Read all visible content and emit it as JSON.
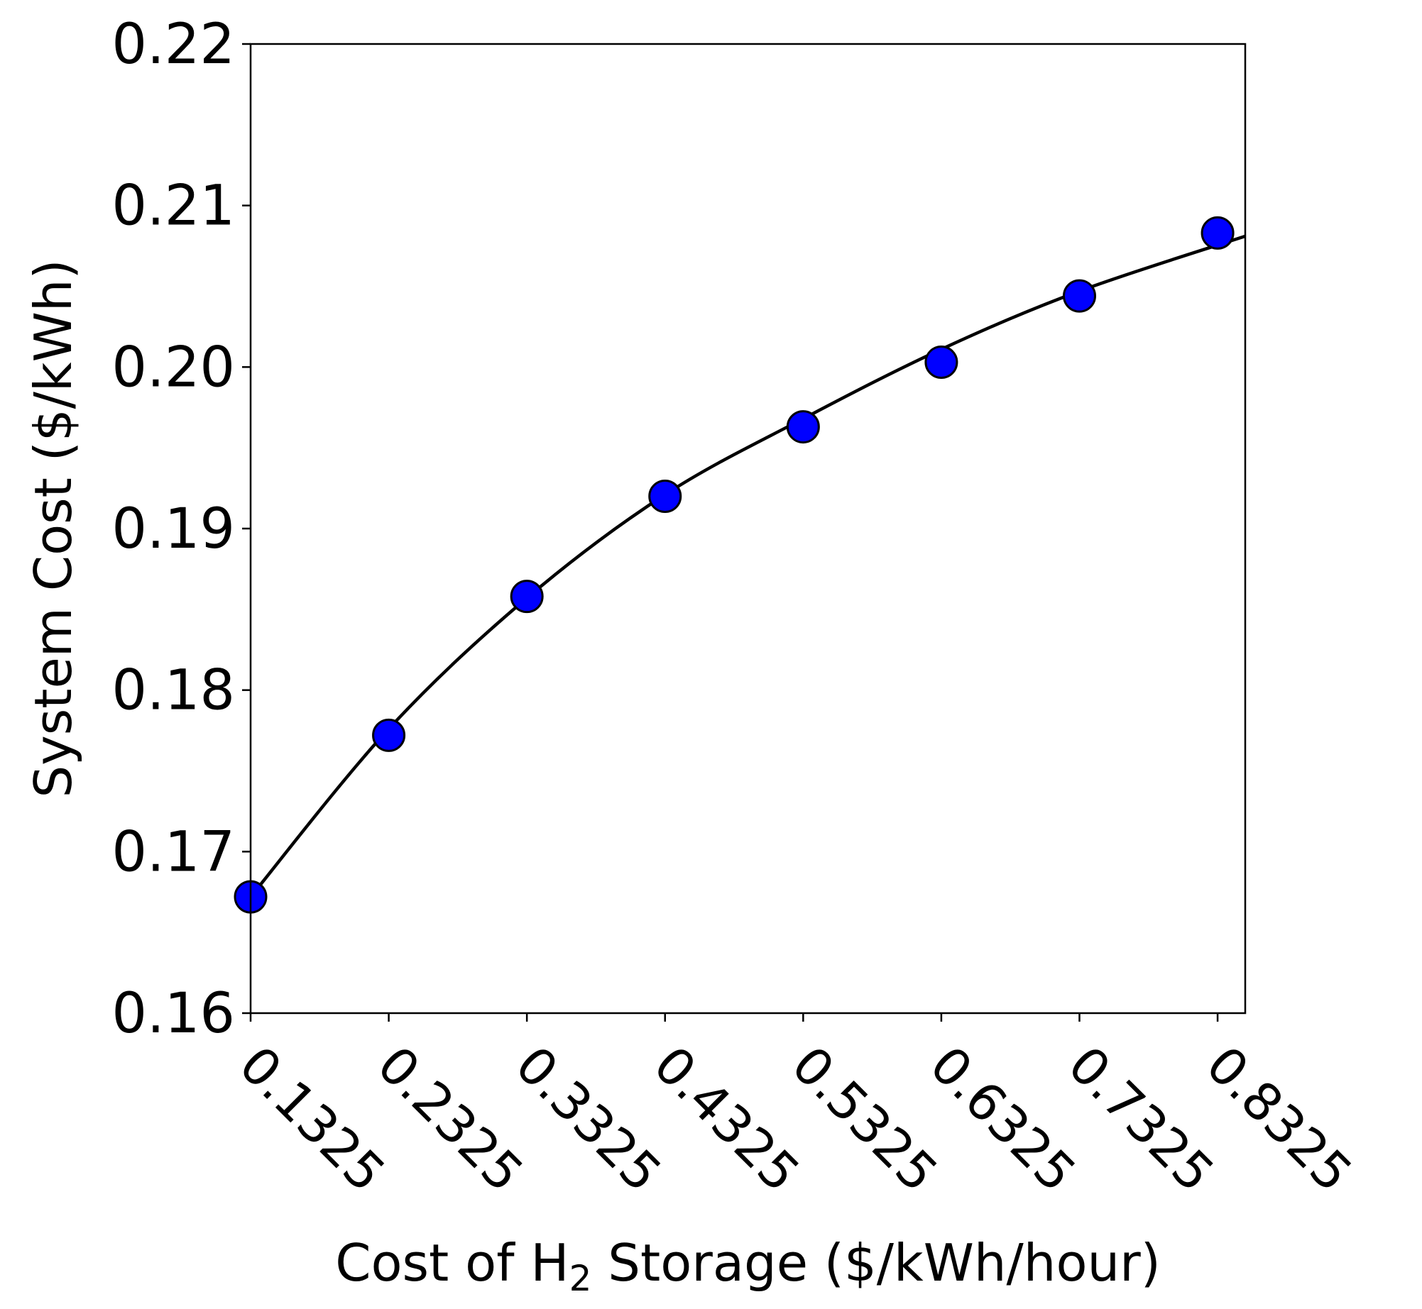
{
  "chart_data": {
    "type": "scatter",
    "title": "",
    "xlabel": {
      "prefix": "Cost of H",
      "subscript": "2",
      "suffix": " Storage ($/kWh/hour)"
    },
    "ylabel": "System Cost ($/kWh)",
    "xlim": [
      0.1325,
      0.8525
    ],
    "ylim": [
      0.16,
      0.22
    ],
    "x_ticks": [
      0.1325,
      0.2325,
      0.3325,
      0.4325,
      0.5325,
      0.6325,
      0.7325,
      0.8325
    ],
    "x_tick_labels": [
      "0.1325",
      "0.2325",
      "0.3325",
      "0.4325",
      "0.5325",
      "0.6325",
      "0.7325",
      "0.8325"
    ],
    "y_ticks": [
      0.16,
      0.17,
      0.18,
      0.19,
      0.2,
      0.21,
      0.22
    ],
    "y_tick_labels": [
      "0.16",
      "0.17",
      "0.18",
      "0.19",
      "0.20",
      "0.21",
      "0.22"
    ],
    "grid": false,
    "series": [
      {
        "kind": "scatter",
        "x": [
          0.1325,
          0.2325,
          0.3325,
          0.4325,
          0.5325,
          0.6325,
          0.7325,
          0.8325
        ],
        "y": [
          0.1672,
          0.1772,
          0.1858,
          0.192,
          0.1963,
          0.2003,
          0.2044,
          0.2083
        ],
        "color": "#0000ff",
        "edgecolor": "#000000"
      },
      {
        "kind": "fit-line",
        "x": [
          0.1325,
          0.2325,
          0.3325,
          0.4325,
          0.5325,
          0.6325,
          0.7325,
          0.8525
        ],
        "y": [
          0.1672,
          0.1776,
          0.1857,
          0.1921,
          0.1968,
          0.2011,
          0.2047,
          0.2081
        ],
        "color": "#000000"
      }
    ]
  }
}
